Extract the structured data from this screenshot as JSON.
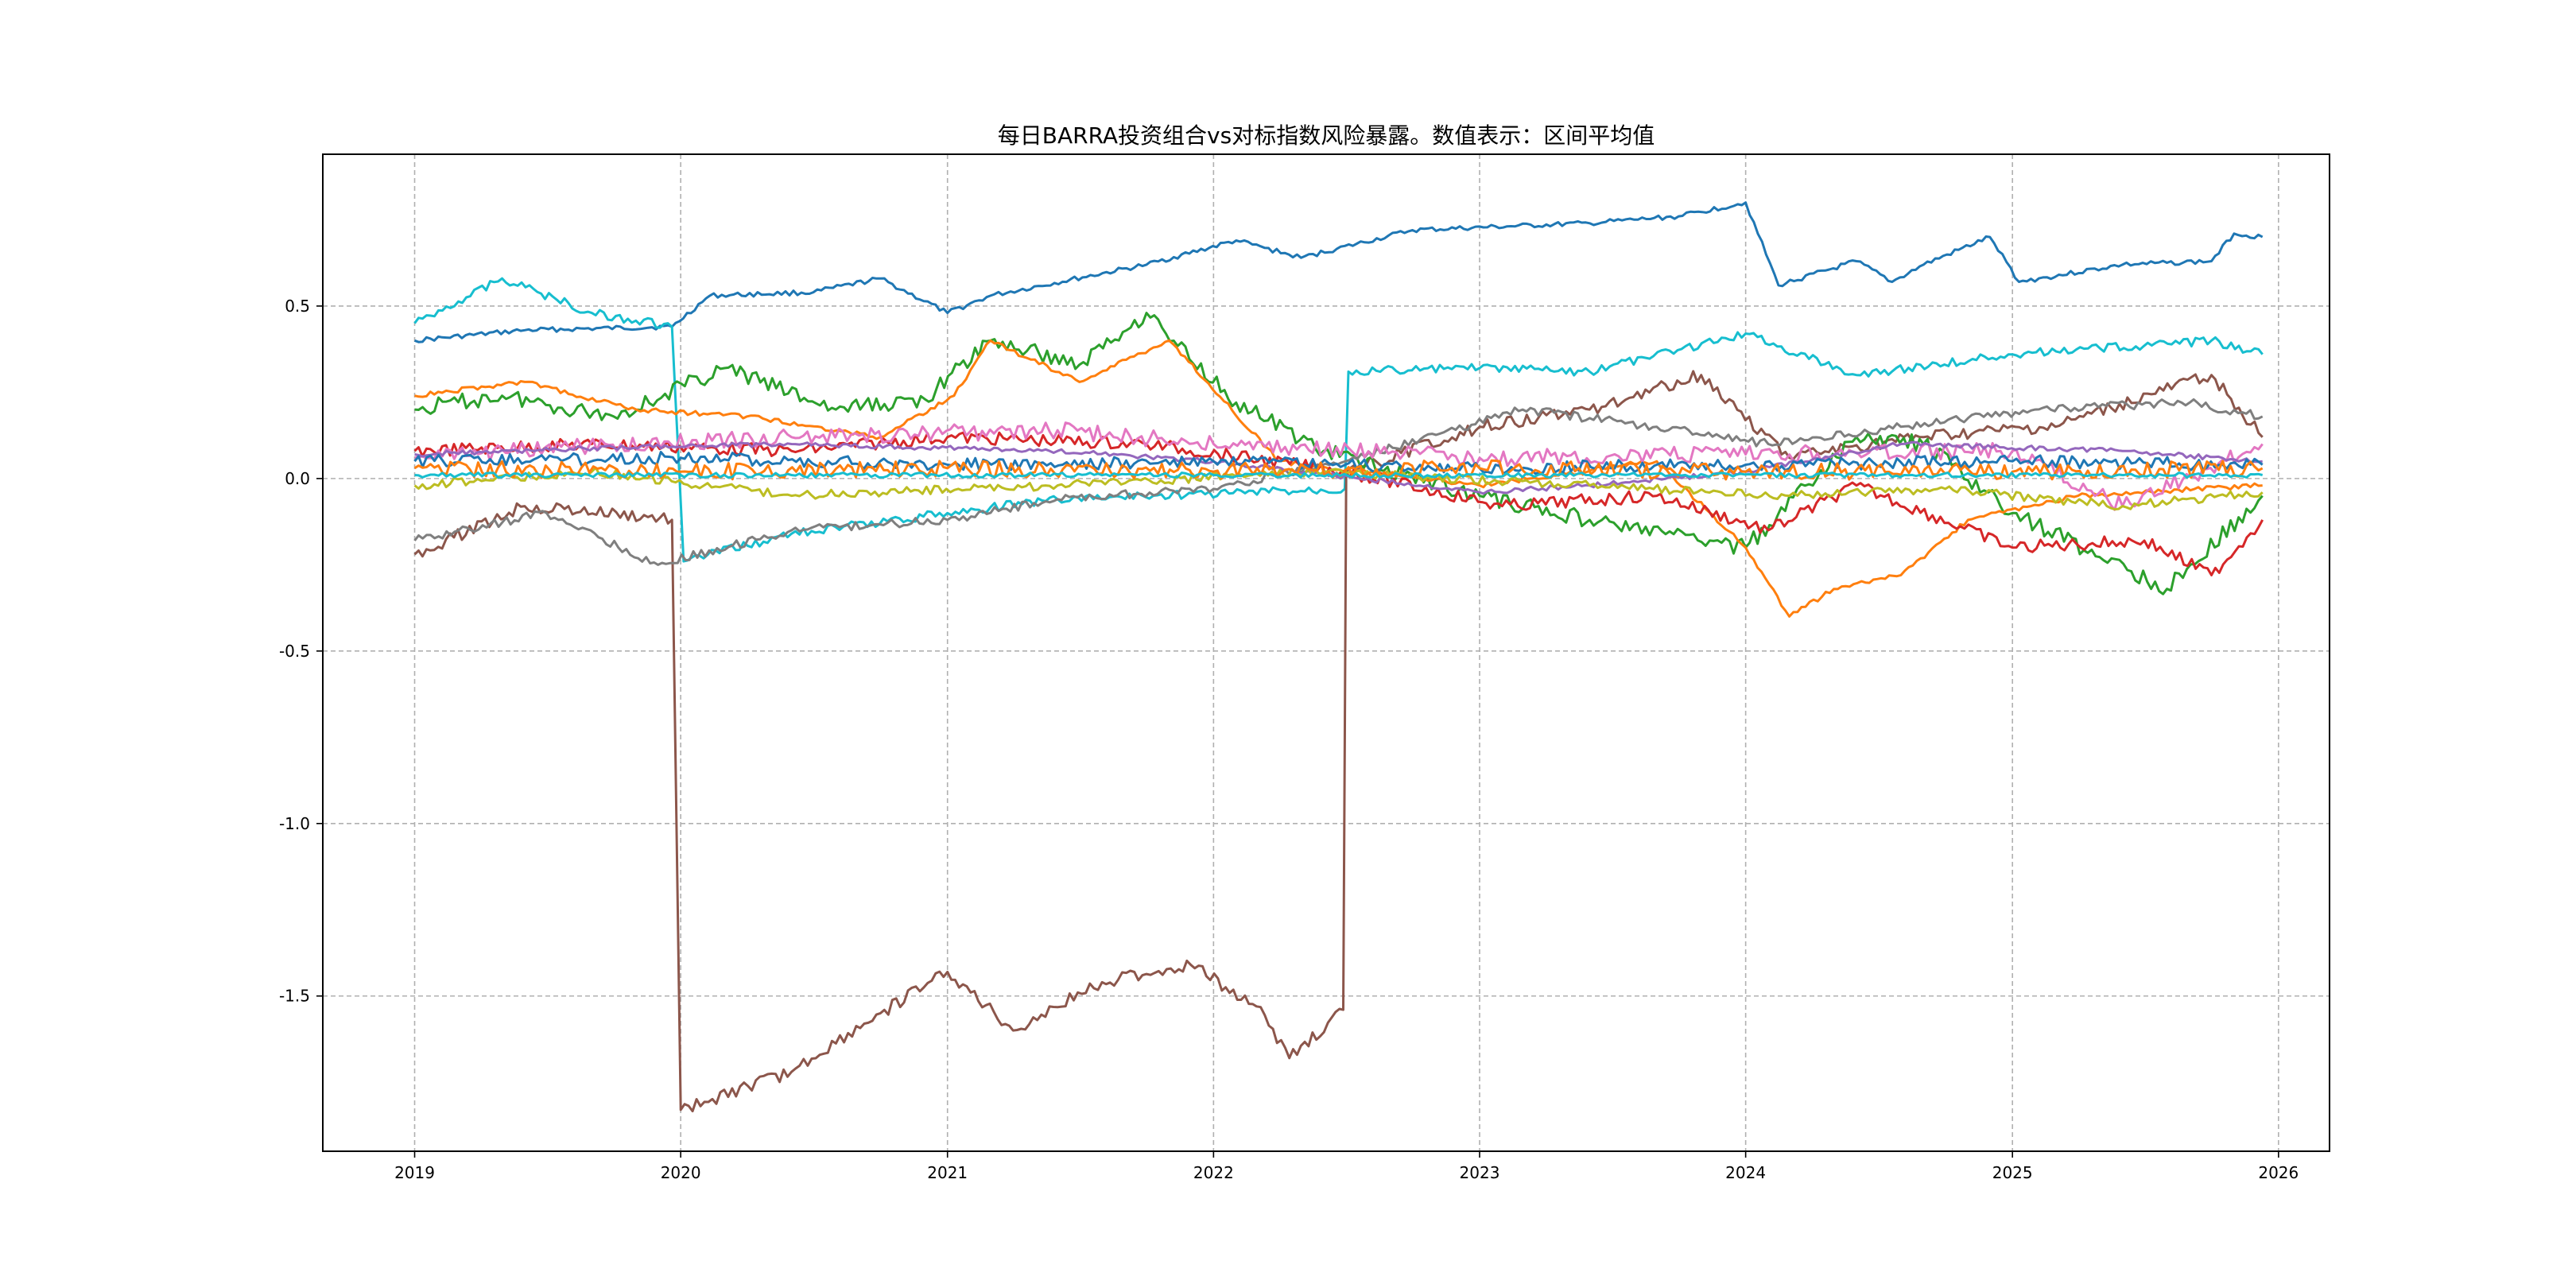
{
  "chart_data": {
    "type": "line",
    "title": "每日BARRA投资组合vs对标指数风险暴露。数值表示：区间平均值",
    "xlabel": "",
    "ylabel": "",
    "x_ticks": [
      "2019",
      "2020",
      "2021",
      "2022",
      "2023",
      "2024",
      "2025",
      "2026"
    ],
    "x_range": [
      "2018-08-28",
      "2026-03-12"
    ],
    "y_ticks": [
      -1.5,
      -1.0,
      -0.5,
      0.0,
      0.5
    ],
    "y_tick_labels": [
      "-1.5",
      "-1.0",
      "-0.5",
      "0.0",
      "0.5"
    ],
    "ylim": [
      -1.95,
      0.94
    ],
    "grid": true,
    "legend": "none",
    "series": [
      {
        "color": "#1f77b4",
        "points": [
          [
            "2019-01-01",
            0.4
          ],
          [
            "2019-06-01",
            0.43
          ],
          [
            "2019-12-20",
            0.44
          ],
          [
            "2020-02-10",
            0.53
          ],
          [
            "2020-07-01",
            0.54
          ],
          [
            "2020-10-01",
            0.58
          ],
          [
            "2021-01-01",
            0.48
          ],
          [
            "2021-03-01",
            0.53
          ],
          [
            "2021-10-01",
            0.62
          ],
          [
            "2022-02-01",
            0.69
          ],
          [
            "2022-05-01",
            0.64
          ],
          [
            "2022-10-01",
            0.72
          ],
          [
            "2023-06-01",
            0.74
          ],
          [
            "2023-10-01",
            0.76
          ],
          [
            "2024-01-01",
            0.8
          ],
          [
            "2024-02-15",
            0.56
          ],
          [
            "2024-06-01",
            0.63
          ],
          [
            "2024-07-20",
            0.57
          ],
          [
            "2024-09-01",
            0.62
          ],
          [
            "2024-12-01",
            0.7
          ],
          [
            "2025-01-10",
            0.57
          ],
          [
            "2025-06-01",
            0.62
          ],
          [
            "2025-10-01",
            0.63
          ],
          [
            "2025-11-01",
            0.71
          ],
          [
            "2025-12-10",
            0.7
          ]
        ]
      },
      {
        "color": "#17becf",
        "points": [
          [
            "2019-01-01",
            0.45
          ],
          [
            "2019-05-01",
            0.58
          ],
          [
            "2019-09-01",
            0.48
          ],
          [
            "2019-12-20",
            0.44
          ],
          [
            "2020-01-05",
            -0.24
          ],
          [
            "2020-06-01",
            -0.16
          ],
          [
            "2021-01-01",
            -0.1
          ],
          [
            "2021-06-01",
            -0.06
          ],
          [
            "2022-06-30",
            -0.03
          ],
          [
            "2022-07-05",
            0.31
          ],
          [
            "2023-01-01",
            0.32
          ],
          [
            "2023-06-01",
            0.31
          ],
          [
            "2024-01-01",
            0.42
          ],
          [
            "2024-06-01",
            0.3
          ],
          [
            "2025-01-01",
            0.36
          ],
          [
            "2025-10-01",
            0.4
          ],
          [
            "2025-12-10",
            0.36
          ]
        ]
      },
      {
        "color": "#8c564b",
        "points": [
          [
            "2019-01-01",
            -0.22
          ],
          [
            "2019-06-01",
            -0.08
          ],
          [
            "2019-12-20",
            -0.12
          ],
          [
            "2020-01-01",
            -1.83
          ],
          [
            "2020-06-01",
            -1.72
          ],
          [
            "2020-10-01",
            -1.55
          ],
          [
            "2021-01-01",
            -1.43
          ],
          [
            "2021-04-01",
            -1.6
          ],
          [
            "2021-08-01",
            -1.46
          ],
          [
            "2021-12-01",
            -1.41
          ],
          [
            "2022-03-01",
            -1.53
          ],
          [
            "2022-04-15",
            -1.68
          ],
          [
            "2022-06-28",
            -1.54
          ],
          [
            "2022-07-02",
            0.02
          ],
          [
            "2023-01-01",
            0.15
          ],
          [
            "2023-06-01",
            0.2
          ],
          [
            "2023-11-01",
            0.3
          ],
          [
            "2024-03-01",
            0.06
          ],
          [
            "2024-09-01",
            0.12
          ],
          [
            "2025-03-01",
            0.15
          ],
          [
            "2025-10-01",
            0.3
          ],
          [
            "2025-12-10",
            0.12
          ]
        ]
      },
      {
        "color": "#2ca02c",
        "points": [
          [
            "2019-01-01",
            0.2
          ],
          [
            "2019-05-01",
            0.24
          ],
          [
            "2019-10-01",
            0.18
          ],
          [
            "2020-03-01",
            0.32
          ],
          [
            "2020-08-01",
            0.2
          ],
          [
            "2020-12-01",
            0.23
          ],
          [
            "2021-03-01",
            0.4
          ],
          [
            "2021-07-01",
            0.33
          ],
          [
            "2021-10-01",
            0.48
          ],
          [
            "2022-02-01",
            0.22
          ],
          [
            "2022-06-01",
            0.08
          ],
          [
            "2023-01-01",
            -0.05
          ],
          [
            "2023-06-01",
            -0.12
          ],
          [
            "2024-01-01",
            -0.2
          ],
          [
            "2024-06-01",
            0.12
          ],
          [
            "2024-09-01",
            0.1
          ],
          [
            "2025-01-01",
            -0.1
          ],
          [
            "2025-08-01",
            -0.32
          ],
          [
            "2025-12-10",
            -0.05
          ]
        ]
      },
      {
        "color": "#ff7f0e",
        "points": [
          [
            "2019-01-01",
            0.24
          ],
          [
            "2019-06-01",
            0.28
          ],
          [
            "2019-11-01",
            0.2
          ],
          [
            "2020-04-01",
            0.18
          ],
          [
            "2020-10-01",
            0.12
          ],
          [
            "2021-01-10",
            0.24
          ],
          [
            "2021-03-01",
            0.4
          ],
          [
            "2021-07-01",
            0.28
          ],
          [
            "2021-11-01",
            0.4
          ],
          [
            "2022-04-01",
            0.05
          ],
          [
            "2023-01-01",
            -0.02
          ],
          [
            "2023-09-01",
            0.05
          ],
          [
            "2024-01-01",
            -0.2
          ],
          [
            "2024-03-01",
            -0.4
          ],
          [
            "2024-05-01",
            -0.32
          ],
          [
            "2024-08-01",
            -0.28
          ],
          [
            "2024-11-01",
            -0.12
          ],
          [
            "2025-04-01",
            -0.05
          ],
          [
            "2025-12-10",
            -0.02
          ]
        ]
      },
      {
        "color": "#7f7f7f",
        "points": [
          [
            "2019-01-01",
            -0.18
          ],
          [
            "2019-07-01",
            -0.1
          ],
          [
            "2019-12-01",
            -0.25
          ],
          [
            "2020-06-01",
            -0.15
          ],
          [
            "2021-01-01",
            -0.12
          ],
          [
            "2021-06-01",
            -0.06
          ],
          [
            "2022-01-01",
            -0.03
          ],
          [
            "2022-07-01",
            0.05
          ],
          [
            "2023-03-01",
            0.2
          ],
          [
            "2023-09-01",
            0.15
          ],
          [
            "2024-02-01",
            0.1
          ],
          [
            "2024-08-01",
            0.15
          ],
          [
            "2025-02-01",
            0.2
          ],
          [
            "2025-09-01",
            0.22
          ],
          [
            "2025-12-10",
            0.18
          ]
        ]
      },
      {
        "color": "#d62728",
        "points": [
          [
            "2019-01-01",
            0.08
          ],
          [
            "2019-09-01",
            0.1
          ],
          [
            "2020-06-01",
            0.08
          ],
          [
            "2021-01-01",
            0.12
          ],
          [
            "2021-10-01",
            0.1
          ],
          [
            "2022-07-01",
            0.02
          ],
          [
            "2023-02-01",
            -0.08
          ],
          [
            "2023-09-01",
            -0.05
          ],
          [
            "2024-02-01",
            -0.15
          ],
          [
            "2024-06-01",
            -0.02
          ],
          [
            "2025-01-01",
            -0.2
          ],
          [
            "2025-07-01",
            -0.18
          ],
          [
            "2025-10-01",
            -0.28
          ],
          [
            "2025-12-10",
            -0.12
          ]
        ]
      },
      {
        "color": "#e377c2",
        "points": [
          [
            "2019-01-01",
            0.06
          ],
          [
            "2019-08-01",
            0.09
          ],
          [
            "2020-06-01",
            0.12
          ],
          [
            "2021-06-01",
            0.14
          ],
          [
            "2022-01-01",
            0.1
          ],
          [
            "2023-01-01",
            0.06
          ],
          [
            "2024-01-01",
            0.07
          ],
          [
            "2025-01-01",
            0.08
          ],
          [
            "2025-06-01",
            -0.08
          ],
          [
            "2025-12-10",
            0.1
          ]
        ]
      },
      {
        "color": "#9467bd",
        "points": [
          [
            "2019-01-01",
            0.07
          ],
          [
            "2019-10-01",
            0.09
          ],
          [
            "2020-06-01",
            0.1
          ],
          [
            "2021-06-01",
            0.08
          ],
          [
            "2022-01-01",
            0.05
          ],
          [
            "2023-01-01",
            -0.04
          ],
          [
            "2023-06-01",
            -0.02
          ],
          [
            "2024-01-01",
            0.02
          ],
          [
            "2024-08-01",
            0.1
          ],
          [
            "2025-06-01",
            0.08
          ],
          [
            "2025-12-10",
            0.05
          ]
        ]
      },
      {
        "color": "#bcbd22",
        "points": [
          [
            "2019-01-01",
            -0.02
          ],
          [
            "2019-09-01",
            0.02
          ],
          [
            "2020-06-01",
            -0.05
          ],
          [
            "2021-06-01",
            -0.02
          ],
          [
            "2022-06-01",
            0.02
          ],
          [
            "2023-06-01",
            -0.02
          ],
          [
            "2024-03-01",
            -0.05
          ],
          [
            "2024-10-01",
            -0.03
          ],
          [
            "2025-06-01",
            -0.08
          ],
          [
            "2025-12-10",
            -0.04
          ]
        ]
      },
      {
        "color": "#1f77b4",
        "points": [
          [
            "2019-01-01",
            0.05
          ],
          [
            "2020-01-01",
            0.06
          ],
          [
            "2021-01-01",
            0.04
          ],
          [
            "2022-01-01",
            0.05
          ],
          [
            "2023-01-01",
            0.03
          ],
          [
            "2024-01-01",
            0.04
          ],
          [
            "2025-01-01",
            0.05
          ],
          [
            "2025-12-10",
            0.04
          ]
        ]
      },
      {
        "color": "#ff7f0e",
        "points": [
          [
            "2019-01-01",
            0.03
          ],
          [
            "2020-01-01",
            0.02
          ],
          [
            "2021-01-01",
            0.03
          ],
          [
            "2022-01-01",
            0.02
          ],
          [
            "2023-01-01",
            0.03
          ],
          [
            "2024-01-01",
            0.02
          ],
          [
            "2025-01-01",
            0.02
          ],
          [
            "2025-12-10",
            0.03
          ]
        ]
      },
      {
        "color": "#17becf",
        "points": [
          [
            "2019-01-01",
            0.01
          ],
          [
            "2020-06-01",
            0.01
          ],
          [
            "2022-01-01",
            0.01
          ],
          [
            "2023-06-01",
            0.01
          ],
          [
            "2025-12-10",
            0.01
          ]
        ]
      }
    ]
  }
}
